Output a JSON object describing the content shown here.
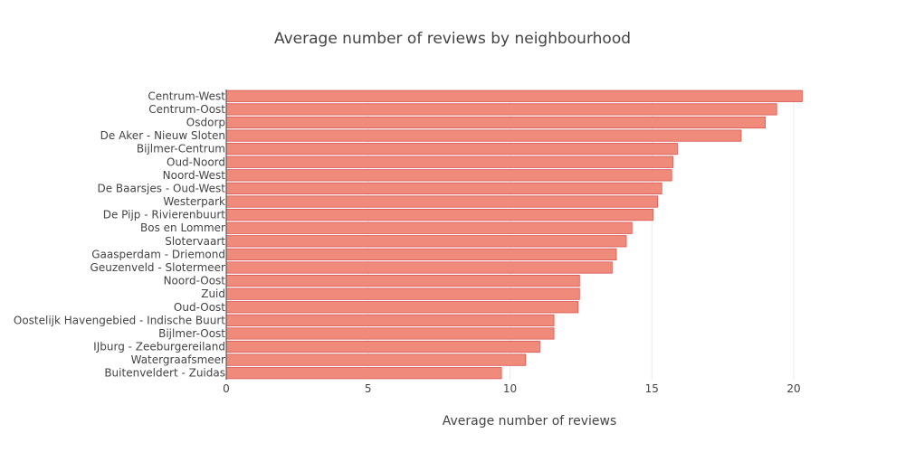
{
  "chart_data": {
    "type": "bar",
    "orientation": "horizontal",
    "title": "Average number of reviews by neighbourhood",
    "xlabel": "Average number of reviews",
    "ylabel": "",
    "xlim": [
      0,
      21.5
    ],
    "xticks": [
      0,
      5,
      10,
      15,
      20
    ],
    "grid": true,
    "bar_color": "#f08b7c",
    "bar_edge_color": "#d9534f",
    "categories": [
      "Centrum-West",
      "Centrum-Oost",
      "Osdorp",
      "De Aker - Nieuw Sloten",
      "Bijlmer-Centrum",
      "Oud-Noord",
      "Noord-West",
      "De Baarsjes - Oud-West",
      "Westerpark",
      "De Pijp - Rivierenbuurt",
      "Bos en Lommer",
      "Slotervaart",
      "Gaasperdam - Driemond",
      "Geuzenveld - Slotermeer",
      "Noord-Oost",
      "Zuid",
      "Oud-Oost",
      "Oostelijk Havengebied - Indische Buurt",
      "Bijlmer-Oost",
      "IJburg - Zeeburgereiland",
      "Watergraafsmeer",
      "Buitenveldert - Zuidas"
    ],
    "values": [
      20.3,
      19.4,
      19.0,
      18.15,
      15.9,
      15.75,
      15.7,
      15.35,
      15.2,
      15.05,
      14.3,
      14.1,
      13.75,
      13.6,
      12.45,
      12.45,
      12.4,
      11.55,
      11.55,
      11.05,
      10.55,
      9.7
    ]
  }
}
